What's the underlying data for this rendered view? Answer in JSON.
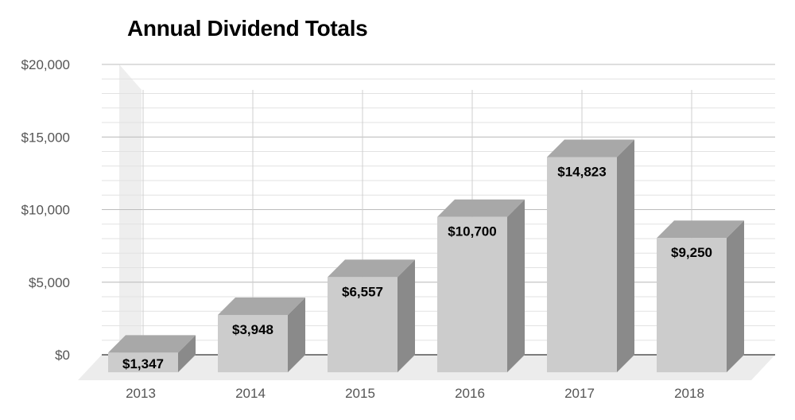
{
  "chart_data": {
    "type": "bar",
    "title": "Annual Dividend Totals",
    "categories": [
      "2013",
      "2014",
      "2015",
      "2016",
      "2017",
      "2018"
    ],
    "values": [
      1347,
      3948,
      6557,
      10700,
      14823,
      9250
    ],
    "data_labels": [
      "$1,347",
      "$3,948",
      "$6,557",
      "$10,700",
      "$14,823",
      "$9,250"
    ],
    "y_tick_labels": [
      "$0",
      "$5,000",
      "$10,000",
      "$15,000",
      "$20,000"
    ],
    "y_ticks": [
      0,
      5000,
      10000,
      15000,
      20000
    ],
    "ylim": [
      0,
      20000
    ],
    "xlabel": "",
    "ylabel": "",
    "grid": true,
    "style": "3d",
    "colors": {
      "bar_front": "#cccccc",
      "bar_top": "#a8a8a8",
      "bar_side": "#8a8a8a",
      "grid_major": "#bdbdbd",
      "grid_minor": "#e2e2e2",
      "back_wall": "#eeeeee",
      "floor": "#ececec"
    }
  }
}
